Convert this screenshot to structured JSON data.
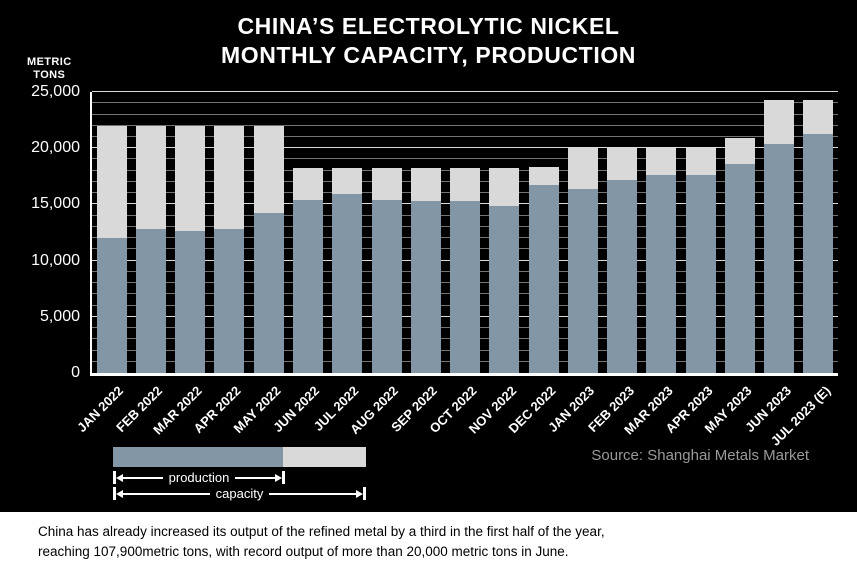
{
  "title": {
    "line1": "CHINA’S ELECTROLYTIC NICKEL",
    "line2": "MONTHLY CAPACITY, PRODUCTION"
  },
  "axis": {
    "unit_line1": "METRIC",
    "unit_line2": "TONS"
  },
  "source": "Source: Shanghai Metals Market",
  "legend": {
    "production_label": "production",
    "capacity_label": "capacity"
  },
  "caption": {
    "line1": "China has already increased its output of the refined metal by a third in the first half of the year,",
    "line2": "reaching 107,900metric tons, with record output of more than 20,000 metric tons in June."
  },
  "colors": {
    "background": "#000000",
    "production": "#8296a6",
    "capacity": "#d9d9d9",
    "text": "#ffffff",
    "source_text": "#9a9a9a"
  },
  "chart_data": {
    "type": "bar",
    "title": "CHINA’S ELECTROLYTIC NICKEL MONTHLY CAPACITY, PRODUCTION",
    "xlabel": "",
    "ylabel": "METRIC TONS",
    "ylim": [
      0,
      25000
    ],
    "ytick_step": 5000,
    "gridline_step": 1000,
    "grid": true,
    "legend_position": "bottom-left",
    "categories": [
      "JAN 2022",
      "FEB 2022",
      "MAR 2022",
      "APR 2022",
      "MAY 2022",
      "JUN 2022",
      "JUL 2022",
      "AUG 2022",
      "SEP 2022",
      "OCT 2022",
      "NOV 2022",
      "DEC 2022",
      "JAN 2023",
      "FEB 2023",
      "MAR 2023",
      "APR 2023",
      "MAY 2023",
      "JUN 2023",
      "JUL 2023 (E)"
    ],
    "series": [
      {
        "name": "production",
        "color": "#8296a6",
        "values": [
          12000,
          12800,
          12600,
          12800,
          14200,
          15400,
          15900,
          15400,
          15300,
          15300,
          14900,
          16700,
          16400,
          17200,
          17600,
          17600,
          18600,
          20400,
          21300
        ]
      },
      {
        "name": "capacity",
        "color": "#d9d9d9",
        "values": [
          22000,
          22000,
          22000,
          22000,
          22000,
          18200,
          18200,
          18200,
          18200,
          18200,
          18200,
          18300,
          20100,
          20100,
          20100,
          20100,
          20900,
          24300,
          24300
        ]
      }
    ],
    "yticks": [
      {
        "value": 0,
        "label": "0"
      },
      {
        "value": 5000,
        "label": "5,000"
      },
      {
        "value": 10000,
        "label": "10,000"
      },
      {
        "value": 15000,
        "label": "15,000"
      },
      {
        "value": 20000,
        "label": "20,000"
      },
      {
        "value": 25000,
        "label": "25,000"
      }
    ]
  }
}
